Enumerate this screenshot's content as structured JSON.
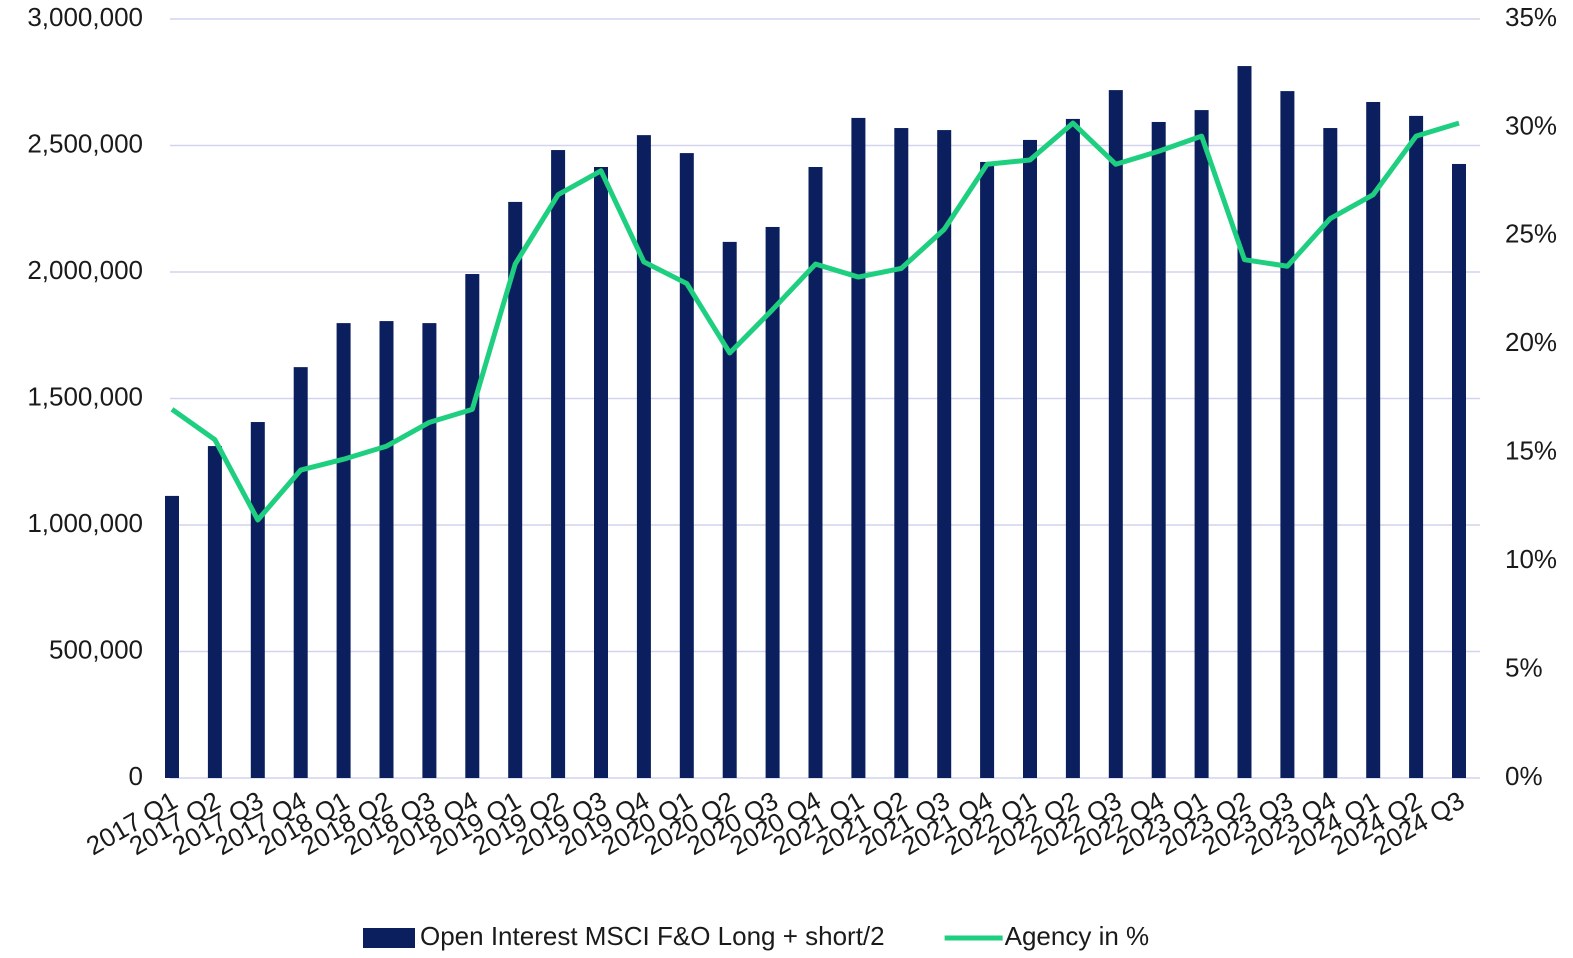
{
  "chart_data": {
    "type": "bar",
    "categories": [
      "2017 Q1",
      "2017 Q2",
      "2017 Q3",
      "2017 Q4",
      "2018 Q1",
      "2018 Q2",
      "2018 Q3",
      "2018 Q4",
      "2019 Q1",
      "2019 Q2",
      "2019 Q3",
      "2019 Q4",
      "2020 Q1",
      "2020 Q2",
      "2020 Q3",
      "2020 Q4",
      "2021 Q1",
      "2021 Q2",
      "2021 Q3",
      "2021 Q4",
      "2022 Q1",
      "2022 Q2",
      "2022 Q3",
      "2022 Q4",
      "2023 Q1",
      "2023 Q2",
      "2023 Q3",
      "2023 Q4",
      "2024 Q1",
      "2024 Q2",
      "2024 Q3"
    ],
    "series": [
      {
        "name": "Open Interest MSCI F&O Long + short/2",
        "type": "bar",
        "color": "#0b1f5e",
        "values": [
          1115000,
          1312000,
          1407000,
          1624000,
          1798000,
          1806000,
          1798000,
          1992000,
          2277000,
          2482000,
          2415000,
          2541000,
          2470000,
          2119000,
          2178000,
          2415000,
          2609000,
          2569000,
          2561000,
          2435000,
          2522000,
          2605000,
          2719000,
          2593000,
          2640000,
          2814000,
          2715000,
          2569000,
          2672000,
          2617000,
          2427000
        ]
      },
      {
        "name": "Agency in %",
        "type": "line",
        "axis": "y2",
        "color": "#1ecf80",
        "values": [
          17.0,
          15.6,
          11.9,
          14.2,
          14.7,
          15.3,
          16.4,
          17.0,
          23.7,
          26.9,
          28.0,
          23.8,
          22.8,
          19.6,
          21.6,
          23.7,
          23.1,
          23.5,
          25.3,
          28.3,
          28.5,
          30.2,
          28.3,
          28.9,
          29.6,
          23.9,
          23.6,
          25.8,
          26.9,
          29.6,
          30.2
        ]
      }
    ],
    "ylim": [
      0,
      3000000
    ],
    "yticks": [
      0,
      {
        "value": 500000,
        "label": "500,000"
      },
      {
        "value": 1000000,
        "label": "1,000,000"
      },
      {
        "value": 1500000,
        "label": "1,500,000"
      },
      {
        "value": 2000000,
        "label": "2,000,000"
      },
      {
        "value": 2500000,
        "label": "2,500,000"
      },
      {
        "value": 3000000,
        "label": "3,000,000"
      }
    ],
    "y2lim": [
      0,
      35
    ],
    "y2ticks": [
      {
        "value": 0,
        "label": "0%"
      },
      {
        "value": 5,
        "label": "5%"
      },
      {
        "value": 10,
        "label": "10%"
      },
      {
        "value": 15,
        "label": "15%"
      },
      {
        "value": 20,
        "label": "20%"
      },
      {
        "value": 25,
        "label": "25%"
      },
      {
        "value": 30,
        "label": "30%"
      },
      {
        "value": 35,
        "label": "35%"
      }
    ],
    "grid": true,
    "legend": "bottom"
  }
}
